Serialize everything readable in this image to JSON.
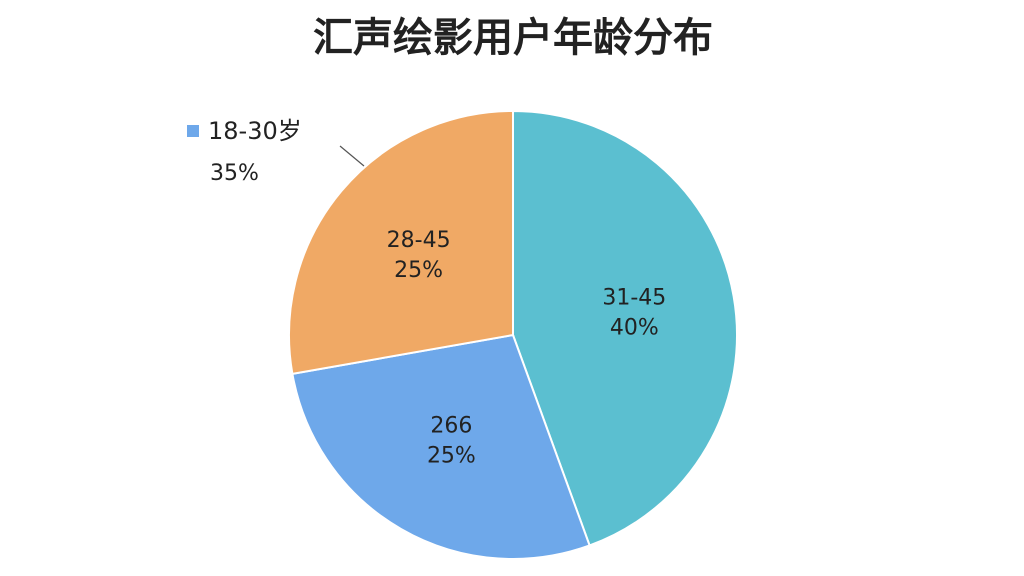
{
  "chart_data": {
    "type": "pie",
    "title": "汇声绘影用户年龄分布",
    "categories": [
      "31-45",
      "266",
      "28-45"
    ],
    "values": [
      40,
      25,
      25
    ],
    "value_labels": [
      "40%",
      "25%",
      "25%"
    ],
    "colors": [
      "#5bbfd0",
      "#6ea8ea",
      "#f0a965"
    ],
    "start_angle": 0,
    "direction": "clockwise",
    "annotation": {
      "text": "18-30岁",
      "label": "35%",
      "color": "#6ea8ea"
    }
  }
}
